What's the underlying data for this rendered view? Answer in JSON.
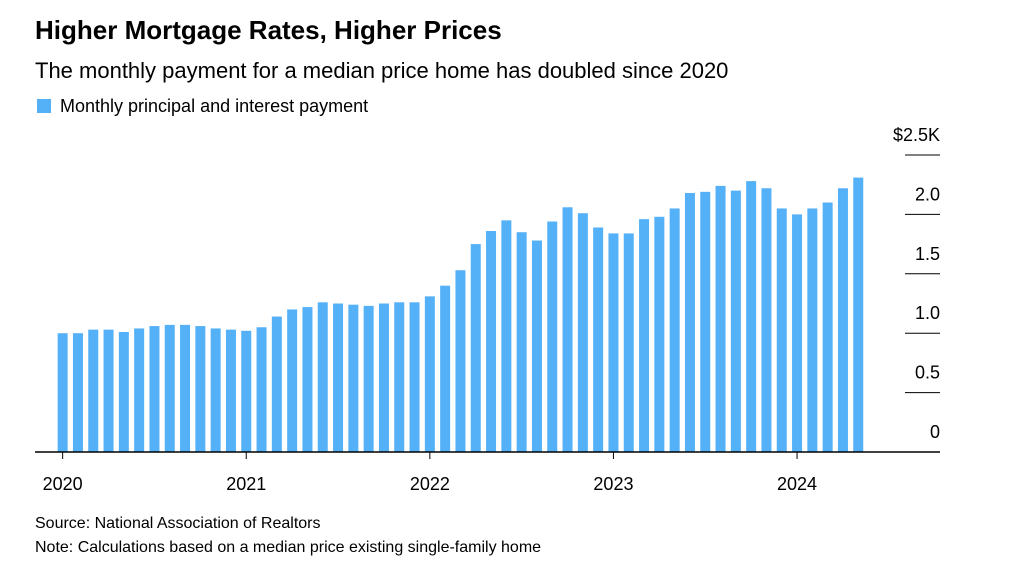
{
  "chart_data": {
    "type": "bar",
    "title": "Higher Mortgage Rates, Higher Prices",
    "subtitle": "The monthly payment for a median price home has doubled since 2020",
    "source": "Source: National Association of Realtors",
    "note": "Note: Calculations based on a median price existing single-family home",
    "series": [
      {
        "name": "Monthly principal and interest payment",
        "color": "#54b0f7",
        "values": [
          1.0,
          1.0,
          1.03,
          1.03,
          1.01,
          1.04,
          1.06,
          1.07,
          1.07,
          1.06,
          1.04,
          1.03,
          1.02,
          1.05,
          1.14,
          1.2,
          1.22,
          1.26,
          1.25,
          1.24,
          1.23,
          1.25,
          1.26,
          1.26,
          1.31,
          1.4,
          1.53,
          1.75,
          1.86,
          1.95,
          1.85,
          1.78,
          1.94,
          2.06,
          2.01,
          1.89,
          1.84,
          1.84,
          1.96,
          1.98,
          2.05,
          2.18,
          2.19,
          2.24,
          2.2,
          2.28,
          2.22,
          2.05,
          2.0,
          2.05,
          2.1,
          2.22,
          2.31
        ]
      }
    ],
    "categories": [
      "2020",
      null,
      null,
      null,
      null,
      null,
      null,
      null,
      null,
      null,
      null,
      null,
      "2021",
      null,
      null,
      null,
      null,
      null,
      null,
      null,
      null,
      null,
      null,
      null,
      "2022",
      null,
      null,
      null,
      null,
      null,
      null,
      null,
      null,
      null,
      null,
      null,
      "2023",
      null,
      null,
      null,
      null,
      null,
      null,
      null,
      null,
      null,
      null,
      null,
      "2024",
      null,
      null,
      null,
      null
    ],
    "ylim": [
      0,
      2.5
    ],
    "yticks": [
      0,
      0.5,
      {
        "value": 1,
        "label": "1.0"
      },
      1.5,
      {
        "value": 2,
        "label": "2.0"
      },
      {
        "value": 2.5,
        "label": "$2.5K"
      }
    ],
    "legend": "top-left"
  }
}
